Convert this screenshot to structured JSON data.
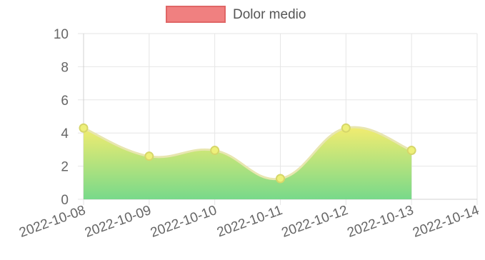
{
  "chart_data": {
    "type": "area",
    "x": [
      "2022-10-08",
      "2022-10-09",
      "2022-10-10",
      "2022-10-11",
      "2022-10-12",
      "2022-10-13",
      "2022-10-14"
    ],
    "series": [
      {
        "name": "Dolor medio",
        "values": [
          4.3,
          2.6,
          2.95,
          1.25,
          4.3,
          2.95,
          null
        ]
      }
    ],
    "ylim": [
      0,
      10
    ],
    "yticks": [
      "0",
      "2",
      "4",
      "6",
      "8",
      "10"
    ],
    "grid": true,
    "legend": "top-center",
    "colors": {
      "legend_fill": "#f08080",
      "legend_stroke": "#e06666",
      "area_top": "#f2ec70",
      "area_bottom": "#78d98a",
      "line": "#e8e6b0",
      "point_fill": "#eef07a",
      "point_stroke": "#d6d66a"
    }
  }
}
